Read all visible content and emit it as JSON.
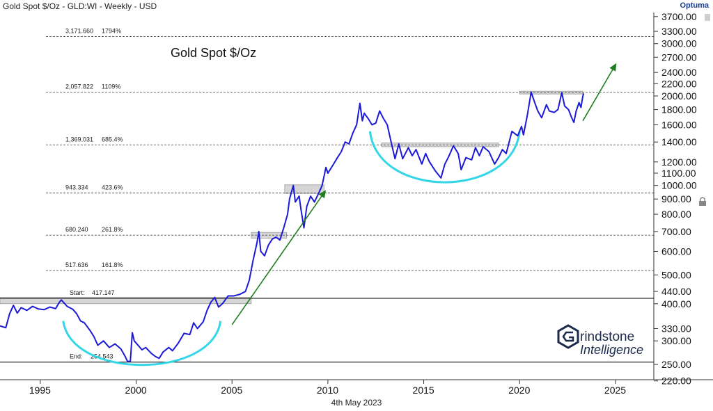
{
  "header": {
    "title": "Gold Spot $/Oz - GLD:WI - Weekly - USD",
    "brand": "Optuma"
  },
  "footer": {
    "date": "4th May 2023"
  },
  "logo": {
    "line1": "rindstone",
    "line2": "Intelligence",
    "text": "Grindstone Intelligence"
  },
  "colors": {
    "price": "#1a1ad8",
    "arc": "#33d6e6",
    "arrow": "#1e7d1e",
    "box": "#c8c8c8",
    "level": "#555555"
  },
  "chart_data": {
    "type": "line",
    "title": "Gold Spot $/Oz",
    "y_scale": "log",
    "ylim": [
      220,
      3800
    ],
    "xlim": [
      1992.9,
      2027.0
    ],
    "x_ticks": [
      1995,
      2000,
      2005,
      2010,
      2015,
      2020,
      2025
    ],
    "y_ticks": [
      {
        "value": 3700,
        "label": "3700.00"
      },
      {
        "value": 3300,
        "label": "3300.00"
      },
      {
        "value": 3000,
        "label": "3000.00"
      },
      {
        "value": 2700,
        "label": "2700.00"
      },
      {
        "value": 2400,
        "label": "2400.00"
      },
      {
        "value": 2200,
        "label": "2200.00"
      },
      {
        "value": 2000,
        "label": "2000.00"
      },
      {
        "value": 1800,
        "label": "1800.00"
      },
      {
        "value": 1600,
        "label": "1600.00"
      },
      {
        "value": 1400,
        "label": "1400.00"
      },
      {
        "value": 1200,
        "label": "1200.00"
      },
      {
        "value": 1100,
        "label": "1100.00"
      },
      {
        "value": 1000,
        "label": "1000.00"
      },
      {
        "value": 900,
        "label": "900.00"
      },
      {
        "value": 800,
        "label": "800.00"
      },
      {
        "value": 700,
        "label": "700.00"
      },
      {
        "value": 600,
        "label": "600.00"
      },
      {
        "value": 500,
        "label": "500.00"
      },
      {
        "value": 440,
        "label": "440.00"
      },
      {
        "value": 400,
        "label": "400.00"
      },
      {
        "value": 330,
        "label": "330.00"
      },
      {
        "value": 300,
        "label": "300.00"
      },
      {
        "value": 250,
        "label": "250.00"
      },
      {
        "value": 220,
        "label": "220.00"
      }
    ],
    "levels": [
      {
        "value": 3171.66,
        "label": "3,171.660",
        "pct": "1794%",
        "style": "dashed"
      },
      {
        "value": 2057.822,
        "label": "2,057.822",
        "pct": "1109%",
        "style": "dashed"
      },
      {
        "value": 1369.031,
        "label": "1,369.031",
        "pct": "685.4%",
        "style": "dashed"
      },
      {
        "value": 943.334,
        "label": "943.334",
        "pct": "423.6%",
        "style": "dashed"
      },
      {
        "value": 680.24,
        "label": "680.240",
        "pct": "261.8%",
        "style": "dashed"
      },
      {
        "value": 517.636,
        "label": "517.636",
        "pct": "161.8%",
        "style": "dashed"
      },
      {
        "value": 417.147,
        "label": "417.147",
        "prefix": "Start:",
        "style": "solid"
      },
      {
        "value": 254.543,
        "label": "254.543",
        "prefix": "End:",
        "style": "solid"
      }
    ],
    "series": [
      {
        "name": "Gold Spot $/Oz",
        "points": [
          [
            1992.9,
            337
          ],
          [
            1993.2,
            332
          ],
          [
            1993.4,
            370
          ],
          [
            1993.6,
            395
          ],
          [
            1993.8,
            372
          ],
          [
            1994.0,
            388
          ],
          [
            1994.3,
            380
          ],
          [
            1994.6,
            392
          ],
          [
            1994.9,
            384
          ],
          [
            1995.2,
            382
          ],
          [
            1995.5,
            390
          ],
          [
            1995.8,
            385
          ],
          [
            1996.0,
            405
          ],
          [
            1996.1,
            412
          ],
          [
            1996.4,
            392
          ],
          [
            1996.7,
            383
          ],
          [
            1996.9,
            370
          ],
          [
            1997.1,
            350
          ],
          [
            1997.3,
            345
          ],
          [
            1997.6,
            325
          ],
          [
            1997.8,
            310
          ],
          [
            1998.0,
            290
          ],
          [
            1998.3,
            300
          ],
          [
            1998.6,
            285
          ],
          [
            1998.9,
            293
          ],
          [
            1999.2,
            282
          ],
          [
            1999.4,
            268
          ],
          [
            1999.55,
            256
          ],
          [
            1999.7,
            256
          ],
          [
            1999.8,
            320
          ],
          [
            1999.9,
            300
          ],
          [
            2000.1,
            290
          ],
          [
            2000.3,
            280
          ],
          [
            2000.5,
            285
          ],
          [
            2000.8,
            272
          ],
          [
            2001.0,
            266
          ],
          [
            2001.2,
            262
          ],
          [
            2001.4,
            275
          ],
          [
            2001.7,
            285
          ],
          [
            2001.9,
            278
          ],
          [
            2002.2,
            295
          ],
          [
            2002.5,
            318
          ],
          [
            2002.8,
            315
          ],
          [
            2003.0,
            345
          ],
          [
            2003.2,
            330
          ],
          [
            2003.5,
            348
          ],
          [
            2003.7,
            380
          ],
          [
            2003.9,
            405
          ],
          [
            2004.1,
            420
          ],
          [
            2004.3,
            390
          ],
          [
            2004.5,
            400
          ],
          [
            2004.8,
            425
          ],
          [
            2005.1,
            425
          ],
          [
            2005.4,
            430
          ],
          [
            2005.7,
            440
          ],
          [
            2005.9,
            480
          ],
          [
            2006.1,
            560
          ],
          [
            2006.3,
            640
          ],
          [
            2006.4,
            700
          ],
          [
            2006.5,
            600
          ],
          [
            2006.7,
            580
          ],
          [
            2006.9,
            630
          ],
          [
            2007.1,
            660
          ],
          [
            2007.3,
            670
          ],
          [
            2007.5,
            655
          ],
          [
            2007.7,
            720
          ],
          [
            2007.9,
            800
          ],
          [
            2008.0,
            900
          ],
          [
            2008.2,
            1000
          ],
          [
            2008.3,
            880
          ],
          [
            2008.5,
            920
          ],
          [
            2008.6,
            830
          ],
          [
            2008.75,
            720
          ],
          [
            2008.9,
            850
          ],
          [
            2009.1,
            920
          ],
          [
            2009.3,
            880
          ],
          [
            2009.5,
            935
          ],
          [
            2009.7,
            1000
          ],
          [
            2009.9,
            1150
          ],
          [
            2010.0,
            1100
          ],
          [
            2010.3,
            1180
          ],
          [
            2010.5,
            1240
          ],
          [
            2010.7,
            1300
          ],
          [
            2010.9,
            1400
          ],
          [
            2011.1,
            1380
          ],
          [
            2011.3,
            1500
          ],
          [
            2011.5,
            1600
          ],
          [
            2011.67,
            1890
          ],
          [
            2011.8,
            1650
          ],
          [
            2011.9,
            1750
          ],
          [
            2012.1,
            1680
          ],
          [
            2012.3,
            1600
          ],
          [
            2012.5,
            1620
          ],
          [
            2012.7,
            1780
          ],
          [
            2012.9,
            1680
          ],
          [
            2013.1,
            1600
          ],
          [
            2013.3,
            1400
          ],
          [
            2013.5,
            1230
          ],
          [
            2013.7,
            1380
          ],
          [
            2013.9,
            1230
          ],
          [
            2014.2,
            1340
          ],
          [
            2014.4,
            1260
          ],
          [
            2014.6,
            1320
          ],
          [
            2014.9,
            1180
          ],
          [
            2015.1,
            1280
          ],
          [
            2015.3,
            1200
          ],
          [
            2015.6,
            1120
          ],
          [
            2015.9,
            1060
          ],
          [
            2016.1,
            1180
          ],
          [
            2016.3,
            1250
          ],
          [
            2016.55,
            1360
          ],
          [
            2016.8,
            1280
          ],
          [
            2016.95,
            1130
          ],
          [
            2017.2,
            1240
          ],
          [
            2017.5,
            1220
          ],
          [
            2017.7,
            1340
          ],
          [
            2017.9,
            1260
          ],
          [
            2018.1,
            1350
          ],
          [
            2018.4,
            1300
          ],
          [
            2018.7,
            1180
          ],
          [
            2018.9,
            1240
          ],
          [
            2019.1,
            1320
          ],
          [
            2019.3,
            1280
          ],
          [
            2019.6,
            1520
          ],
          [
            2019.9,
            1470
          ],
          [
            2020.1,
            1580
          ],
          [
            2020.2,
            1480
          ],
          [
            2020.4,
            1720
          ],
          [
            2020.6,
            2060
          ],
          [
            2020.8,
            1890
          ],
          [
            2020.95,
            1780
          ],
          [
            2021.15,
            1690
          ],
          [
            2021.4,
            1870
          ],
          [
            2021.55,
            1780
          ],
          [
            2021.8,
            1760
          ],
          [
            2022.0,
            1800
          ],
          [
            2022.2,
            2050
          ],
          [
            2022.35,
            1850
          ],
          [
            2022.55,
            1800
          ],
          [
            2022.7,
            1700
          ],
          [
            2022.83,
            1630
          ],
          [
            2022.95,
            1780
          ],
          [
            2023.1,
            1900
          ],
          [
            2023.2,
            1830
          ],
          [
            2023.3,
            2000
          ],
          [
            2023.34,
            2040
          ]
        ]
      }
    ],
    "resistance_boxes": [
      {
        "x0": 1992.9,
        "x1": 2006.0,
        "y0": 400,
        "y1": 420
      },
      {
        "x0": 2006.0,
        "x1": 2007.85,
        "y0": 665,
        "y1": 695
      },
      {
        "x0": 2007.75,
        "x1": 2009.8,
        "y0": 940,
        "y1": 1005
      },
      {
        "x0": 2012.8,
        "x1": 2018.9,
        "y0": 1350,
        "y1": 1390
      },
      {
        "x0": 2020.0,
        "x1": 2023.3,
        "y0": 2045,
        "y1": 2075
      }
    ],
    "arcs": [
      {
        "x0": 1996.2,
        "x1": 2004.4,
        "y_top": 350,
        "y_bottom": 250
      },
      {
        "x0": 2012.2,
        "x1": 2020.0,
        "y_top": 1520,
        "y_bottom": 1030
      }
    ],
    "arrows": [
      {
        "from": [
          2005.0,
          340
        ],
        "to": [
          2009.9,
          965
        ]
      },
      {
        "from": [
          2023.3,
          1650
        ],
        "to": [
          2025.05,
          2580
        ]
      }
    ]
  }
}
